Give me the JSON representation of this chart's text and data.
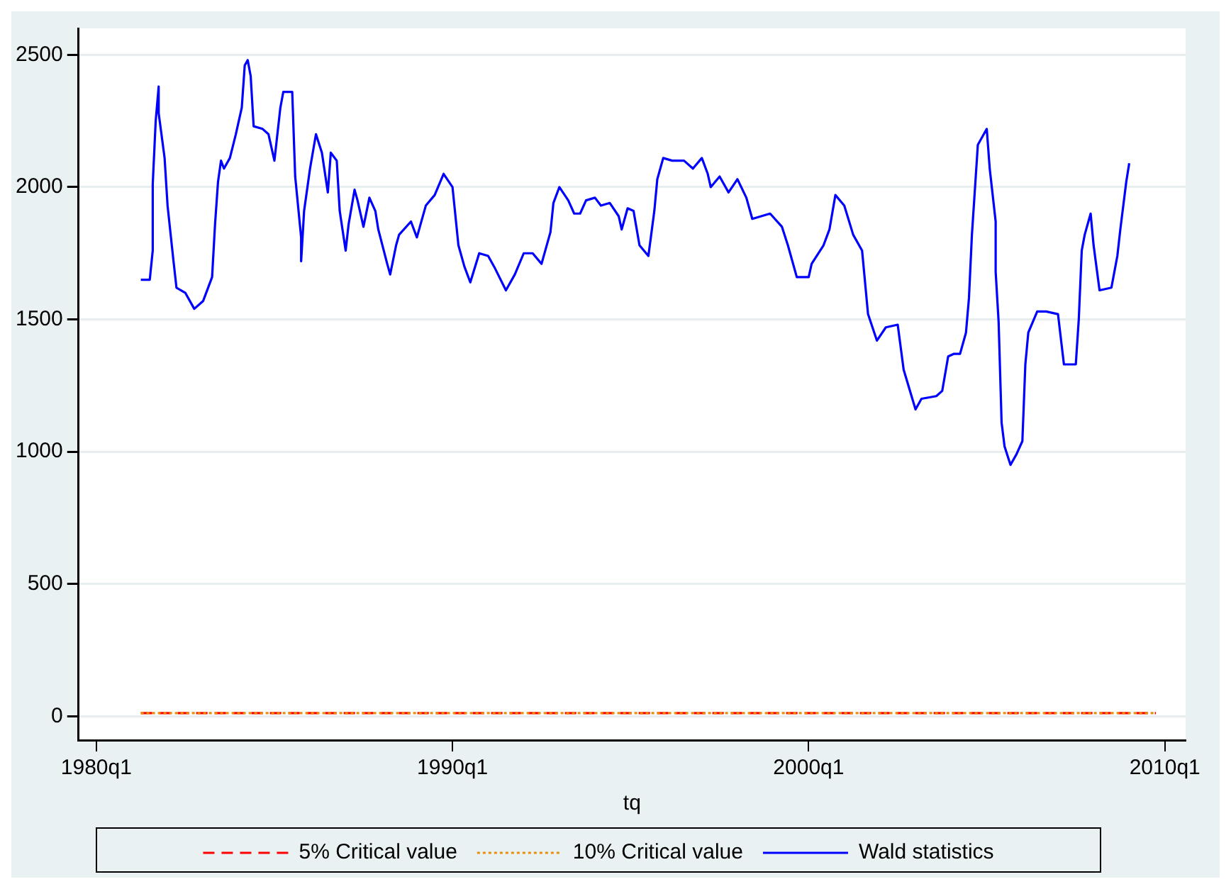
{
  "chart_data": {
    "type": "line",
    "xlabel": "tq",
    "xlim": [
      "1979-07",
      "2010-08"
    ],
    "ylim": [
      -90,
      2600
    ],
    "xticks": [
      {
        "value": "1980-01",
        "label": "1980q1"
      },
      {
        "value": "1990-01",
        "label": "1990q1"
      },
      {
        "value": "2000-01",
        "label": "2000q1"
      },
      {
        "value": "2010-01",
        "label": "2010q1"
      }
    ],
    "yticks": [
      0,
      500,
      1000,
      1500,
      2000,
      2500
    ],
    "grid": "y",
    "legend": "bottom",
    "marker": "none",
    "series": [
      {
        "name": "5% Critical value",
        "color": "#ff0000",
        "line_style": "dashed",
        "x": [
          "1981-04",
          "2009-10"
        ],
        "values": [
          12,
          12
        ]
      },
      {
        "name": "10% Critical value",
        "color": "#e8900c",
        "line_style": "dotted",
        "x": [
          "1981-04",
          "2009-10"
        ],
        "values": [
          12,
          12
        ]
      },
      {
        "name": "Wald statistics",
        "color": "#0000ff",
        "line_style": "solid",
        "x": [
          "1981-04",
          "1981-07",
          "1981-08",
          "1981-08",
          "1981-09",
          "1981-10",
          "1981-10",
          "1981-12",
          "1982-01",
          "1982-03",
          "1982-04",
          "1982-07",
          "1982-10",
          "1983-01",
          "1983-04",
          "1983-05",
          "1983-06",
          "1983-07",
          "1983-08",
          "1983-10",
          "1983-12",
          "1984-02",
          "1984-03",
          "1984-04",
          "1984-05",
          "1984-06",
          "1984-09",
          "1984-11",
          "1985-01",
          "1985-03",
          "1985-04",
          "1985-07",
          "1985-08",
          "1985-10",
          "1985-10",
          "1985-11",
          "1986-01",
          "1986-03",
          "1986-05",
          "1986-07",
          "1986-08",
          "1986-10",
          "1986-11",
          "1987-01",
          "1987-02",
          "1987-04",
          "1987-05",
          "1987-07",
          "1987-09",
          "1987-11",
          "1987-12",
          "1988-03",
          "1988-04",
          "1988-06",
          "1988-07",
          "1988-11",
          "1989-01",
          "1989-04",
          "1989-07",
          "1989-10",
          "1990-01",
          "1990-03",
          "1990-05",
          "1990-07",
          "1990-10",
          "1991-01",
          "1991-03",
          "1991-07",
          "1991-10",
          "1992-01",
          "1992-04",
          "1992-07",
          "1992-10",
          "1992-11",
          "1993-01",
          "1993-04",
          "1993-06",
          "1993-08",
          "1993-10",
          "1994-01",
          "1994-03",
          "1994-06",
          "1994-09",
          "1994-10",
          "1994-12",
          "1995-02",
          "1995-04",
          "1995-07",
          "1995-09",
          "1995-10",
          "1995-12",
          "1996-03",
          "1996-07",
          "1996-10",
          "1997-01",
          "1997-03",
          "1997-04",
          "1997-07",
          "1997-10",
          "1998-01",
          "1998-04",
          "1998-06",
          "1998-09",
          "1998-12",
          "1999-04",
          "1999-06",
          "1999-09",
          "2000-01",
          "2000-02",
          "2000-06",
          "2000-08",
          "2000-10",
          "2001-01",
          "2001-04",
          "2001-07",
          "2001-09",
          "2001-12",
          "2002-03",
          "2002-07",
          "2002-09",
          "2003-01",
          "2003-03",
          "2003-08",
          "2003-10",
          "2003-12",
          "2004-02",
          "2004-04",
          "2004-06",
          "2004-07",
          "2004-08",
          "2004-10",
          "2004-12",
          "2005-01",
          "2005-02",
          "2005-04",
          "2005-04",
          "2005-05",
          "2005-06",
          "2005-07",
          "2005-09",
          "2005-11",
          "2006-01",
          "2006-02",
          "2006-03",
          "2006-06",
          "2006-09",
          "2007-01",
          "2007-03",
          "2007-07",
          "2007-08",
          "2007-09",
          "2007-10",
          "2007-12",
          "2008-01",
          "2008-03",
          "2008-07",
          "2008-09",
          "2008-10",
          "2008-12",
          "2009-01"
        ],
        "values": [
          1650,
          1650,
          1760,
          2010,
          2250,
          2380,
          2280,
          2110,
          1930,
          1720,
          1620,
          1600,
          1540,
          1570,
          1660,
          1860,
          2020,
          2100,
          2070,
          2110,
          2200,
          2300,
          2460,
          2480,
          2420,
          2230,
          2220,
          2200,
          2100,
          2300,
          2360,
          2360,
          2040,
          1810,
          1720,
          1910,
          2070,
          2200,
          2130,
          1980,
          2130,
          2100,
          1910,
          1760,
          1860,
          1990,
          1950,
          1850,
          1960,
          1910,
          1840,
          1710,
          1670,
          1780,
          1820,
          1870,
          1810,
          1930,
          1970,
          2050,
          2000,
          1780,
          1700,
          1640,
          1750,
          1740,
          1700,
          1610,
          1670,
          1750,
          1750,
          1710,
          1830,
          1940,
          2000,
          1950,
          1900,
          1900,
          1950,
          1960,
          1930,
          1940,
          1890,
          1840,
          1920,
          1910,
          1780,
          1740,
          1910,
          2030,
          2110,
          2100,
          2100,
          2070,
          2110,
          2050,
          2000,
          2040,
          1980,
          2030,
          1960,
          1880,
          1890,
          1900,
          1850,
          1780,
          1660,
          1660,
          1710,
          1780,
          1840,
          1970,
          1930,
          1820,
          1760,
          1520,
          1420,
          1470,
          1480,
          1310,
          1160,
          1200,
          1210,
          1230,
          1360,
          1370,
          1370,
          1450,
          1580,
          1820,
          2160,
          2200,
          2220,
          2070,
          1870,
          1680,
          1490,
          1110,
          1020,
          950,
          990,
          1040,
          1330,
          1450,
          1530,
          1530,
          1520,
          1330,
          1330,
          1500,
          1760,
          1820,
          1900,
          1780,
          1610,
          1620,
          1740,
          1840,
          2020,
          2090
        ]
      }
    ]
  }
}
